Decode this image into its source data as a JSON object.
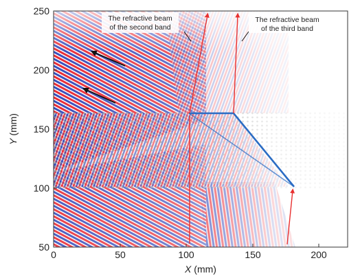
{
  "figure": {
    "x_axis": {
      "label_var": "X",
      "label_unit": " (mm)",
      "range": [
        0,
        222
      ],
      "ticks": [
        0,
        50,
        100,
        150,
        200
      ]
    },
    "y_axis": {
      "label_var": "Y",
      "label_unit": " (mm)",
      "range": [
        50,
        250
      ],
      "ticks": [
        50,
        100,
        150,
        200,
        250
      ]
    },
    "annotations": [
      {
        "lines": [
          "The refractive beam",
          "of the second band"
        ]
      },
      {
        "lines": [
          "The refractive beam",
          "of the third band"
        ]
      }
    ],
    "colors": {
      "wave_red": "#e8202a",
      "wave_blue": "#2d45b8",
      "crystal_edge": "#2b6cc4",
      "ray": "#e83030",
      "arrow": "#111111",
      "lattice": "#9a9a9a"
    }
  }
}
